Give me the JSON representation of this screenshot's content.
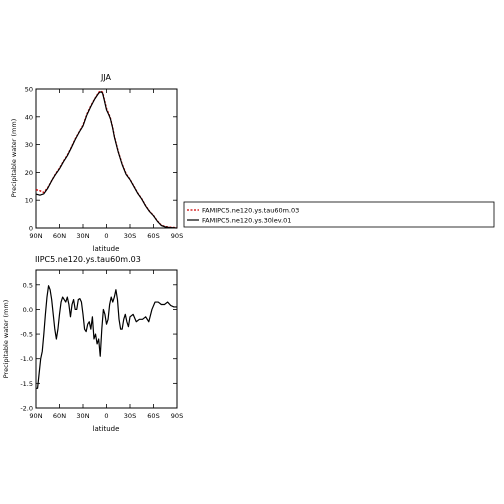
{
  "chart_data": [
    {
      "type": "line",
      "title": "JJA",
      "xlabel": "latitude",
      "ylabel": "Precipitable water (mm)",
      "xlim": [
        -90,
        90
      ],
      "ylim": [
        0,
        50
      ],
      "x_direction": "north-to-south",
      "xticks": [
        {
          "value": -90,
          "label": "90N"
        },
        {
          "value": -60,
          "label": "60N"
        },
        {
          "value": -30,
          "label": "30N"
        },
        {
          "value": 0,
          "label": "0"
        },
        {
          "value": 30,
          "label": "30S"
        },
        {
          "value": 60,
          "label": "60S"
        },
        {
          "value": 90,
          "label": "90S"
        }
      ],
      "yticks": [
        0,
        10,
        20,
        30,
        40,
        50
      ],
      "grid": false,
      "legend_placement": "right",
      "series": [
        {
          "name": "FAMIPC5.ne120.ys.tau60m.03",
          "color": "#cc0000",
          "dash": "dashed",
          "x": [
            -90,
            -85,
            -80,
            -75,
            -70,
            -65,
            -60,
            -55,
            -50,
            -45,
            -40,
            -35,
            -30,
            -25,
            -20,
            -15,
            -10,
            -7,
            -5,
            -3,
            0,
            3,
            5,
            8,
            10,
            15,
            20,
            25,
            30,
            35,
            40,
            45,
            50,
            55,
            60,
            65,
            70,
            75,
            80,
            85,
            90
          ],
          "y": [
            13.8,
            13.4,
            12.8,
            14.5,
            17.0,
            19.5,
            21.5,
            24.0,
            26.2,
            29.0,
            32.0,
            34.5,
            37.0,
            41.0,
            44.0,
            46.5,
            48.8,
            49.3,
            48.8,
            46.5,
            43.0,
            41.0,
            39.5,
            36.0,
            33.0,
            27.5,
            23.0,
            19.5,
            17.5,
            15.0,
            12.5,
            10.5,
            8.0,
            6.0,
            4.5,
            2.5,
            1.0,
            0.5,
            0.3,
            0.2,
            0.1
          ]
        },
        {
          "name": "FAMIPC5.ne120.ys.30lev.01",
          "color": "#000000",
          "dash": "solid",
          "x": [
            -90,
            -85,
            -80,
            -75,
            -70,
            -65,
            -60,
            -55,
            -50,
            -45,
            -40,
            -35,
            -30,
            -25,
            -20,
            -15,
            -10,
            -7,
            -5,
            -3,
            0,
            3,
            5,
            8,
            10,
            15,
            20,
            25,
            30,
            35,
            40,
            45,
            50,
            55,
            60,
            65,
            70,
            75,
            80,
            85,
            90
          ],
          "y": [
            12.2,
            11.8,
            12.3,
            14.3,
            17.0,
            19.3,
            21.3,
            23.8,
            26.0,
            28.8,
            31.8,
            34.4,
            36.7,
            40.7,
            43.7,
            46.4,
            48.5,
            49.0,
            48.5,
            46.2,
            42.5,
            40.7,
            39.3,
            35.8,
            32.8,
            27.3,
            22.8,
            19.3,
            17.4,
            14.9,
            12.4,
            10.4,
            7.9,
            5.9,
            4.4,
            2.4,
            0.9,
            0.4,
            0.2,
            0.1,
            0.0
          ]
        }
      ]
    },
    {
      "type": "line",
      "title": "IIPC5.ne120.ys.tau60m.03",
      "xlabel": "latitude",
      "ylabel": "Precipitable water (mm)",
      "xlim": [
        -90,
        90
      ],
      "ylim": [
        -2.0,
        0.8
      ],
      "x_direction": "north-to-south",
      "xticks": [
        {
          "value": -90,
          "label": "90N"
        },
        {
          "value": -60,
          "label": "60N"
        },
        {
          "value": -30,
          "label": "30N"
        },
        {
          "value": 0,
          "label": "0"
        },
        {
          "value": 30,
          "label": "30S"
        },
        {
          "value": 60,
          "label": "60S"
        },
        {
          "value": 90,
          "label": "90S"
        }
      ],
      "yticks": [
        {
          "value": -2.0,
          "label": "-2.0"
        },
        {
          "value": -1.5,
          "label": "-1.5"
        },
        {
          "value": -1.0,
          "label": "-1.0"
        },
        {
          "value": -0.5,
          "label": "-0.5"
        },
        {
          "value": 0.0,
          "label": "0.0"
        },
        {
          "value": 0.5,
          "label": "0.5"
        }
      ],
      "grid": false,
      "series": [
        {
          "color": "#000000",
          "dash": "solid",
          "x": [
            -90,
            -88,
            -86,
            -84,
            -82,
            -80,
            -78,
            -76,
            -74,
            -72,
            -70,
            -68,
            -66,
            -64,
            -62,
            -60,
            -58,
            -56,
            -54,
            -52,
            -50,
            -48,
            -46,
            -44,
            -42,
            -40,
            -38,
            -36,
            -34,
            -32,
            -30,
            -28,
            -26,
            -24,
            -22,
            -20,
            -18,
            -16,
            -14,
            -12,
            -10,
            -8,
            -6,
            -4,
            -2,
            0,
            2,
            4,
            6,
            8,
            10,
            12,
            14,
            16,
            18,
            20,
            22,
            24,
            26,
            28,
            30,
            34,
            38,
            42,
            46,
            50,
            54,
            58,
            62,
            66,
            70,
            74,
            78,
            82,
            86,
            90
          ],
          "y": [
            -1.6,
            -1.6,
            -1.3,
            -1.0,
            -0.85,
            -0.5,
            -0.1,
            0.25,
            0.48,
            0.4,
            0.2,
            -0.1,
            -0.4,
            -0.6,
            -0.4,
            -0.1,
            0.15,
            0.25,
            0.2,
            0.15,
            0.25,
            0.1,
            -0.15,
            0.1,
            0.2,
            0.0,
            0.0,
            0.2,
            0.22,
            0.15,
            -0.1,
            -0.4,
            -0.45,
            -0.3,
            -0.25,
            -0.4,
            -0.15,
            -0.6,
            -0.5,
            -0.7,
            -0.6,
            -0.95,
            -0.4,
            0.0,
            -0.1,
            -0.3,
            -0.2,
            0.1,
            0.25,
            0.15,
            0.25,
            0.4,
            0.2,
            -0.2,
            -0.4,
            -0.4,
            -0.2,
            -0.1,
            -0.25,
            -0.35,
            -0.15,
            -0.1,
            -0.25,
            -0.2,
            -0.2,
            -0.15,
            -0.25,
            0.0,
            0.15,
            0.15,
            0.1,
            0.1,
            0.15,
            0.08,
            0.05,
            0.05
          ]
        }
      ]
    }
  ]
}
